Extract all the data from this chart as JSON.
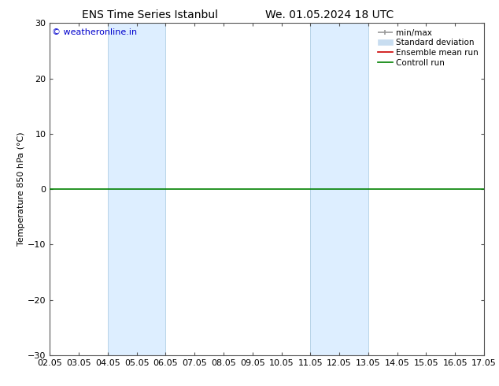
{
  "title_left": "ENS Time Series Istanbul",
  "title_right": "We. 01.05.2024 18 UTC",
  "ylabel": "Temperature 850 hPa (°C)",
  "xlim": [
    2.05,
    17.05
  ],
  "ylim": [
    -30,
    30
  ],
  "yticks": [
    -30,
    -20,
    -10,
    0,
    10,
    20,
    30
  ],
  "xtick_labels": [
    "02.05",
    "03.05",
    "04.05",
    "05.05",
    "06.05",
    "07.05",
    "08.05",
    "09.05",
    "10.05",
    "11.05",
    "12.05",
    "13.05",
    "14.05",
    "15.05",
    "16.05",
    "17.05"
  ],
  "xtick_positions": [
    2.05,
    3.05,
    4.05,
    5.05,
    6.05,
    7.05,
    8.05,
    9.05,
    10.05,
    11.05,
    12.05,
    13.05,
    14.05,
    15.05,
    16.05,
    17.05
  ],
  "shaded_bands": [
    {
      "x_start": 4.05,
      "x_end": 6.05
    },
    {
      "x_start": 11.05,
      "x_end": 13.05
    }
  ],
  "control_run_y": 0,
  "control_run_color": "#008000",
  "ensemble_mean_color": "#cc0000",
  "minmax_color": "#999999",
  "stddev_color": "#c8ddf0",
  "band_color": "#ddeeff",
  "band_edge_color": "#b8d4e8",
  "copyright_text": "© weatheronline.in",
  "copyright_color": "#0000cc",
  "background_color": "#ffffff",
  "font_size": 8,
  "title_font_size": 10
}
